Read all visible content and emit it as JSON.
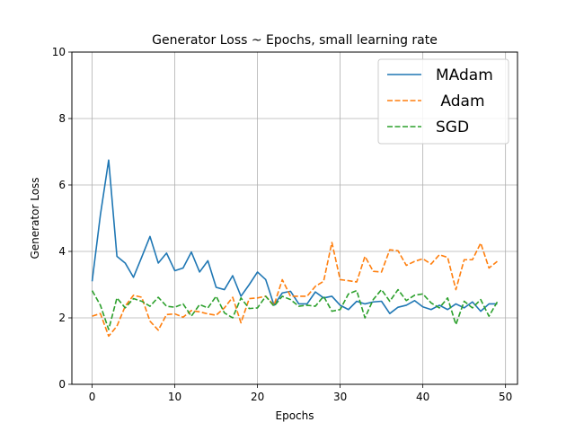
{
  "chart_data": {
    "type": "line",
    "title": "Generator Loss ~ Epochs, small learning rate",
    "xlabel": "Epochs",
    "ylabel": "Generator Loss",
    "xlim": [
      -2.45,
      51.45
    ],
    "ylim": [
      0,
      10
    ],
    "xticks": [
      0,
      10,
      20,
      30,
      40,
      50
    ],
    "yticks": [
      0,
      2,
      4,
      6,
      8,
      10
    ],
    "grid": true,
    "legend_position": "top-right",
    "x": [
      0,
      1,
      2,
      3,
      4,
      5,
      6,
      7,
      8,
      9,
      10,
      11,
      12,
      13,
      14,
      15,
      16,
      17,
      18,
      19,
      20,
      21,
      22,
      23,
      24,
      25,
      26,
      27,
      28,
      29,
      30,
      31,
      32,
      33,
      34,
      35,
      36,
      37,
      38,
      39,
      40,
      41,
      42,
      43,
      44,
      45,
      46,
      47,
      48,
      49
    ],
    "series": [
      {
        "name": "MAdam",
        "color": "#1f77b4",
        "dash": "solid",
        "values": [
          3.1,
          5.1,
          6.75,
          3.85,
          3.65,
          3.22,
          3.83,
          4.45,
          3.65,
          3.95,
          3.42,
          3.5,
          3.98,
          3.38,
          3.72,
          2.92,
          2.85,
          3.27,
          2.65,
          3.0,
          3.38,
          3.15,
          2.38,
          2.75,
          2.8,
          2.42,
          2.42,
          2.78,
          2.6,
          2.65,
          2.38,
          2.25,
          2.5,
          2.42,
          2.48,
          2.5,
          2.13,
          2.32,
          2.38,
          2.52,
          2.33,
          2.25,
          2.38,
          2.25,
          2.42,
          2.3,
          2.48,
          2.2,
          2.42,
          2.42
        ]
      },
      {
        "name": " Adam",
        "color": "#ff7f0e",
        "dash": "dashed",
        "values": [
          2.05,
          2.13,
          1.45,
          1.75,
          2.35,
          2.68,
          2.62,
          1.9,
          1.63,
          2.1,
          2.12,
          2.02,
          2.22,
          2.18,
          2.12,
          2.08,
          2.3,
          2.62,
          1.85,
          2.58,
          2.6,
          2.65,
          2.38,
          3.15,
          2.65,
          2.65,
          2.65,
          2.95,
          3.1,
          4.27,
          3.15,
          3.12,
          3.08,
          3.85,
          3.4,
          3.38,
          4.05,
          4.02,
          3.58,
          3.7,
          3.78,
          3.62,
          3.9,
          3.82,
          2.85,
          3.75,
          3.75,
          4.25,
          3.5,
          3.7
        ]
      },
      {
        "name": "SGD",
        "color": "#2ca02c",
        "dash": "dashed",
        "values": [
          2.82,
          2.38,
          1.65,
          2.6,
          2.3,
          2.58,
          2.5,
          2.35,
          2.62,
          2.35,
          2.32,
          2.42,
          2.05,
          2.4,
          2.3,
          2.65,
          2.15,
          2.0,
          2.6,
          2.28,
          2.3,
          2.65,
          2.35,
          2.65,
          2.55,
          2.35,
          2.38,
          2.35,
          2.65,
          2.2,
          2.25,
          2.72,
          2.82,
          2.0,
          2.55,
          2.85,
          2.5,
          2.85,
          2.52,
          2.68,
          2.72,
          2.45,
          2.3,
          2.6,
          1.8,
          2.5,
          2.3,
          2.55,
          2.05,
          2.48
        ]
      }
    ]
  }
}
